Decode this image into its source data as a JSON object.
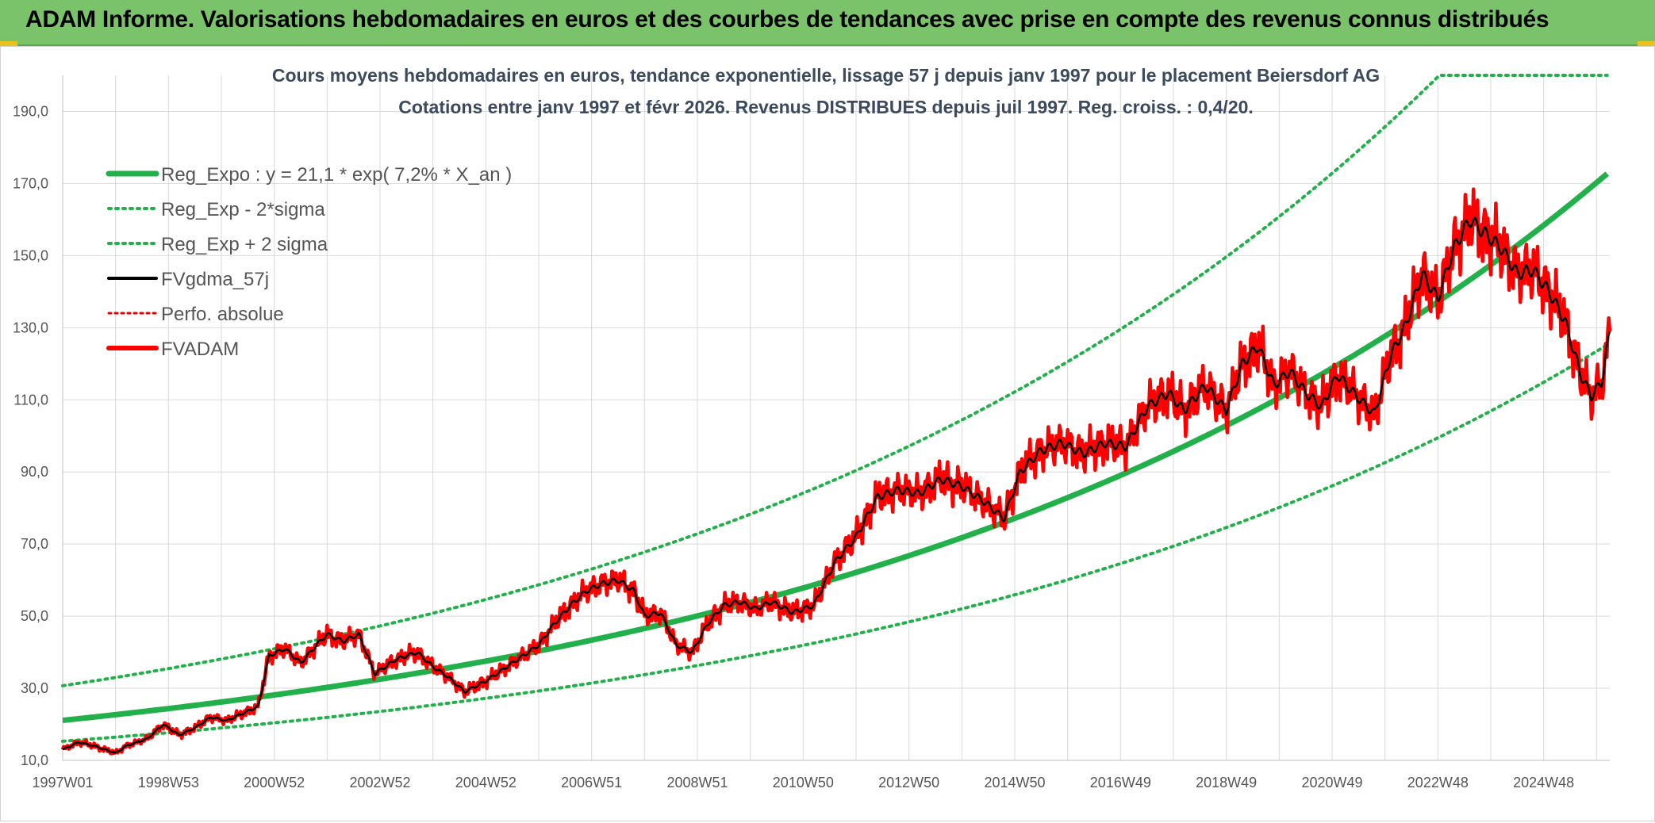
{
  "header": {
    "title": "ADAM Informe. Valorisations hebdomadaires en euros et des courbes de tendances avec prise en compte des revenus connus distribués"
  },
  "colors": {
    "header_bg": "#7ac36a",
    "trend": "#22b04a",
    "band": "#22b04a",
    "gdma": "#000000",
    "perfo": "#e00000",
    "fvadam": "#ff0000",
    "grid": "#d9d9d9"
  },
  "chart_data": {
    "type": "line",
    "title_line1": "Cours moyens hebdomadaires en euros, tendance exponentielle, lissage 57 j depuis janv 1997 pour le placement Beiersdorf AG",
    "title_line2": "Cotations entre janv 1997 et févr 2026. Revenus DISTRIBUES depuis juil 1997. Reg. croiss. : 0,4/20.",
    "x_range": [
      1997.0,
      2026.25
    ],
    "x_ticks": [
      {
        "x": 1997.0,
        "label": "1997W01"
      },
      {
        "x": 1999.0,
        "label": "1998W53"
      },
      {
        "x": 2001.0,
        "label": "2000W52"
      },
      {
        "x": 2003.0,
        "label": "2002W52"
      },
      {
        "x": 2005.0,
        "label": "2004W52"
      },
      {
        "x": 2007.0,
        "label": "2006W51"
      },
      {
        "x": 2009.0,
        "label": "2008W51"
      },
      {
        "x": 2011.0,
        "label": "2010W50"
      },
      {
        "x": 2013.0,
        "label": "2012W50"
      },
      {
        "x": 2015.0,
        "label": "2014W50"
      },
      {
        "x": 2017.0,
        "label": "2016W49"
      },
      {
        "x": 2019.0,
        "label": "2018W49"
      },
      {
        "x": 2021.0,
        "label": "2020W49"
      },
      {
        "x": 2023.0,
        "label": "2022W48"
      },
      {
        "x": 2025.0,
        "label": "2024W48"
      }
    ],
    "ylim": [
      10,
      200
    ],
    "y_ticks": [
      {
        "v": 10,
        "label": "10,0"
      },
      {
        "v": 30,
        "label": "30,0"
      },
      {
        "v": 50,
        "label": "50,0"
      },
      {
        "v": 70,
        "label": "70,0"
      },
      {
        "v": 90,
        "label": "90,0"
      },
      {
        "v": 110,
        "label": "110,0"
      },
      {
        "v": 130,
        "label": "130,0"
      },
      {
        "v": 150,
        "label": "150,0"
      },
      {
        "v": 170,
        "label": "170,0"
      },
      {
        "v": 190,
        "label": "190,0"
      }
    ],
    "legend": [
      {
        "label": "Reg_Expo : y = 21,1 * exp( 7,2% *  X_an )",
        "style": "thick-green"
      },
      {
        "label": "Reg_Exp - 2*sigma",
        "style": "dotted-green"
      },
      {
        "label": "Reg_Exp + 2 sigma",
        "style": "dotted-green"
      },
      {
        "label": "FVgdma_57j",
        "style": "black"
      },
      {
        "label": "Perfo. absolue",
        "style": "dotted-red"
      },
      {
        "label": "FVADAM",
        "style": "thick-red"
      }
    ],
    "series": [
      {
        "name": "Reg_Expo",
        "a": 21.1,
        "rate": 0.072
      },
      {
        "name": "Reg_Exp - 2*sigma",
        "a": 15.3,
        "rate": 0.072
      },
      {
        "name": "Reg_Exp + 2 sigma",
        "a": 30.7,
        "rate": 0.072,
        "cap": 200
      },
      {
        "name": "FVADAM",
        "x": [
          1997.0,
          1997.3,
          1997.6,
          1998.0,
          1998.2,
          1998.6,
          1998.9,
          1999.2,
          1999.5,
          1999.8,
          2000.1,
          2000.4,
          2000.7,
          2000.9,
          2001.2,
          2001.5,
          2001.8,
          2002.0,
          2002.3,
          2002.6,
          2002.9,
          2003.3,
          2003.7,
          2004.0,
          2004.3,
          2004.6,
          2005.0,
          2005.3,
          2005.6,
          2006.0,
          2006.3,
          2006.6,
          2006.9,
          2007.2,
          2007.5,
          2007.8,
          2008.0,
          2008.3,
          2008.6,
          2008.9,
          2009.2,
          2009.5,
          2009.8,
          2010.1,
          2010.4,
          2010.8,
          2011.2,
          2011.6,
          2012.0,
          2012.4,
          2012.8,
          2013.2,
          2013.6,
          2014.0,
          2014.4,
          2014.8,
          2015.1,
          2015.5,
          2015.9,
          2016.3,
          2016.7,
          2017.1,
          2017.5,
          2017.9,
          2018.2,
          2018.6,
          2019.0,
          2019.3,
          2019.6,
          2019.9,
          2020.2,
          2020.5,
          2020.8,
          2021.1,
          2021.4,
          2021.8,
          2022.1,
          2022.4,
          2022.7,
          2023.0,
          2023.3,
          2023.6,
          2023.9,
          2024.2,
          2024.5,
          2024.8,
          2025.1,
          2025.4,
          2025.7,
          2025.9,
          2026.1,
          2026.25
        ],
        "y": [
          13,
          15,
          14,
          12,
          14,
          16,
          20,
          17,
          19,
          22,
          21,
          23,
          25,
          39,
          41,
          37,
          42,
          45,
          43,
          45,
          34,
          38,
          40,
          36,
          33,
          29,
          32,
          35,
          38,
          42,
          48,
          53,
          57,
          59,
          60,
          57,
          50,
          51,
          42,
          40,
          48,
          53,
          54,
          52,
          54,
          51,
          53,
          65,
          72,
          83,
          85,
          84,
          88,
          86,
          82,
          77,
          90,
          96,
          98,
          95,
          98,
          97,
          108,
          112,
          107,
          114,
          107,
          120,
          125,
          114,
          118,
          112,
          108,
          117,
          112,
          106,
          122,
          131,
          145,
          138,
          152,
          160,
          156,
          152,
          145,
          146,
          140,
          132,
          117,
          111,
          115,
          129
        ]
      },
      {
        "name": "FVgdma_57j"
      }
    ]
  }
}
